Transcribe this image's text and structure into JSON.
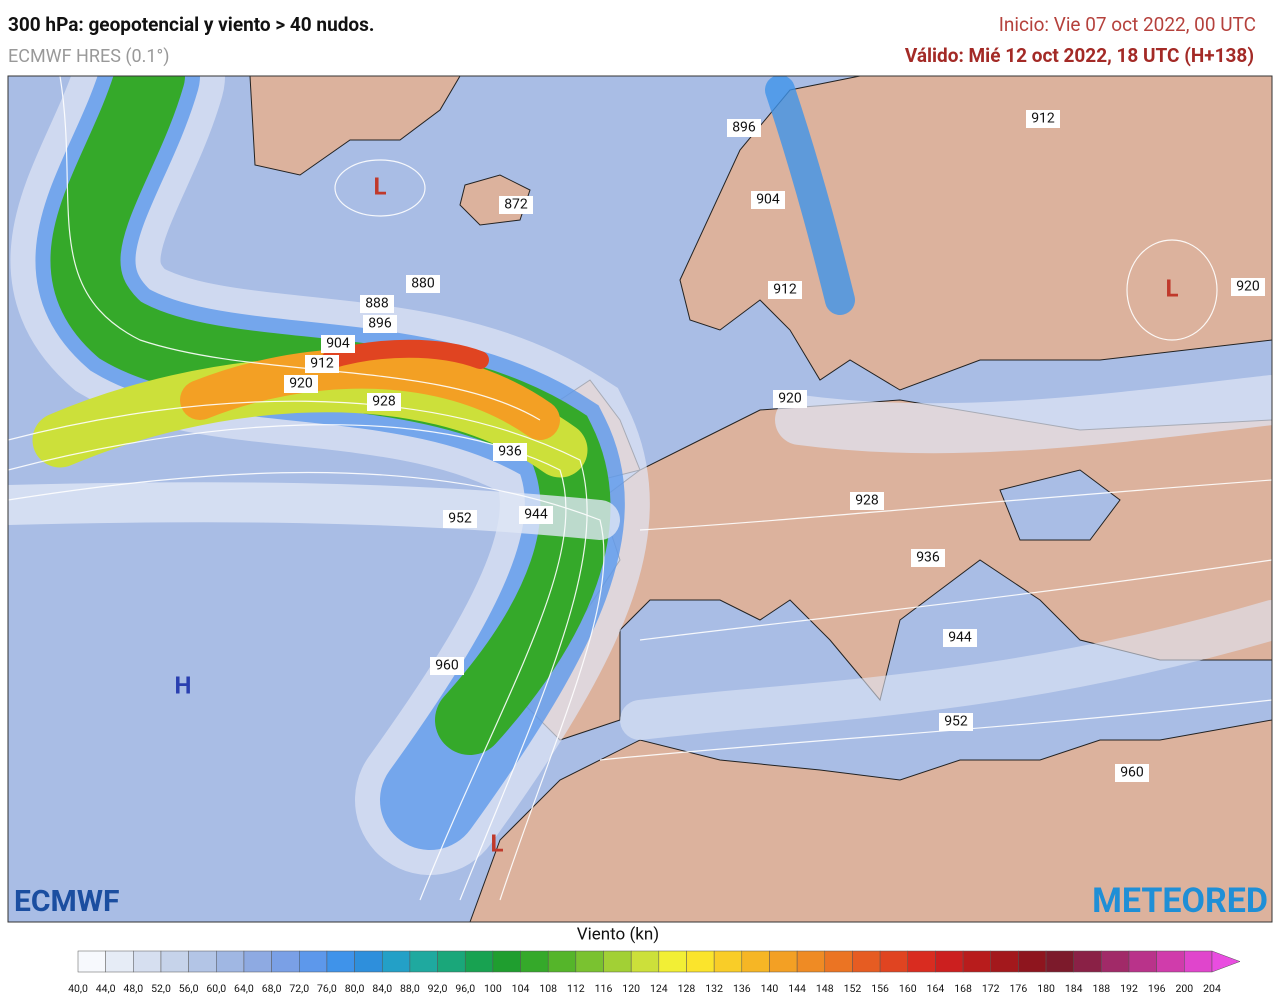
{
  "header": {
    "title": "300 hPa: geopotencial y viento > 40 nudos.",
    "subtitle": "ECMWF HRES (0.1°)",
    "init": "Inicio: Vie 07 oct 2022, 00 UTC",
    "valid": "Válido: Mié 12 oct 2022, 18 UTC (H+138)"
  },
  "map": {
    "contour_labels": [
      "872",
      "880",
      "888",
      "896",
      "904",
      "912",
      "920",
      "928",
      "936",
      "944",
      "952",
      "960",
      "896",
      "904",
      "912",
      "912",
      "920",
      "920",
      "928",
      "936",
      "944",
      "952",
      "960"
    ],
    "centers": [
      "L",
      "L",
      "H",
      "L"
    ]
  },
  "logos": {
    "left": "ECMWF",
    "right": "METEORED"
  },
  "legend": {
    "title": "Viento (kn)",
    "ticks": [
      "40,0",
      "44,0",
      "48,0",
      "52,0",
      "56,0",
      "60,0",
      "64,0",
      "68,0",
      "72,0",
      "76,0",
      "80,0",
      "84,0",
      "88,0",
      "92,0",
      "96,0",
      "100",
      "104",
      "108",
      "112",
      "116",
      "120",
      "124",
      "128",
      "132",
      "136",
      "140",
      "144",
      "148",
      "152",
      "156",
      "160",
      "164",
      "168",
      "172",
      "176",
      "180",
      "184",
      "188",
      "192",
      "196",
      "200",
      "204"
    ],
    "colors": [
      "#f7f9fd",
      "#e6ecf6",
      "#d6dff0",
      "#c6d3ea",
      "#b3c5e6",
      "#a0b7e3",
      "#8eaae2",
      "#7aa0e6",
      "#5d98eb",
      "#3f93ea",
      "#2e8fdc",
      "#23a0c7",
      "#1fa99f",
      "#1aa77a",
      "#18a251",
      "#1f9e2f",
      "#35a92a",
      "#55b52a",
      "#7ac230",
      "#a2d035",
      "#cce03a",
      "#f2ef35",
      "#fbe42c",
      "#f9cd28",
      "#f6b625",
      "#f3a024",
      "#ef8b24",
      "#eb7423",
      "#e65c22",
      "#e04421",
      "#d92c20",
      "#cc1f1f",
      "#b81c1c",
      "#a3181c",
      "#8e151e",
      "#7c1a2b",
      "#8a2146",
      "#a12a68",
      "#b9338a",
      "#d03cab",
      "#e045cc"
    ],
    "overflow_color": "#e94de0"
  }
}
